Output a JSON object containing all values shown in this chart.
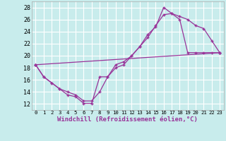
{
  "xlabel": "Windchill (Refroidissement éolien,°C)",
  "bg_color": "#c8ecec",
  "grid_color": "#ffffff",
  "line_color": "#993399",
  "xlim": [
    -0.5,
    23.5
  ],
  "ylim": [
    11,
    29
  ],
  "yticks": [
    12,
    14,
    16,
    18,
    20,
    22,
    24,
    26,
    28
  ],
  "xticks": [
    0,
    1,
    2,
    3,
    4,
    5,
    6,
    7,
    8,
    9,
    10,
    11,
    12,
    13,
    14,
    15,
    16,
    17,
    18,
    19,
    20,
    21,
    22,
    23
  ],
  "line1_x": [
    0,
    1,
    2,
    3,
    4,
    5,
    6,
    7,
    8,
    9,
    10,
    11,
    12,
    13,
    14,
    15,
    16,
    17,
    18,
    19,
    20,
    21,
    22,
    23
  ],
  "line1_y": [
    18.5,
    16.5,
    15.5,
    14.5,
    13.5,
    13.2,
    12.1,
    12.1,
    16.5,
    16.5,
    18.5,
    19.0,
    20.0,
    21.5,
    23.5,
    24.8,
    28.0,
    27.0,
    26.5,
    26.0,
    25.0,
    24.5,
    22.5,
    20.5
  ],
  "line2_x": [
    0,
    1,
    2,
    3,
    4,
    5,
    6,
    7,
    8,
    9,
    10,
    11,
    12,
    13,
    14,
    15,
    16,
    17,
    18,
    19,
    20,
    21,
    22,
    23
  ],
  "line2_y": [
    18.5,
    16.5,
    15.5,
    14.5,
    14.0,
    13.5,
    12.5,
    12.5,
    14.0,
    16.5,
    18.0,
    18.5,
    20.0,
    21.5,
    23.0,
    25.0,
    26.8,
    27.0,
    26.0,
    20.5,
    20.5,
    20.5,
    20.5,
    20.5
  ],
  "line3_x": [
    0,
    1,
    23
  ],
  "line3_y": [
    18.5,
    16.5,
    20.5
  ]
}
